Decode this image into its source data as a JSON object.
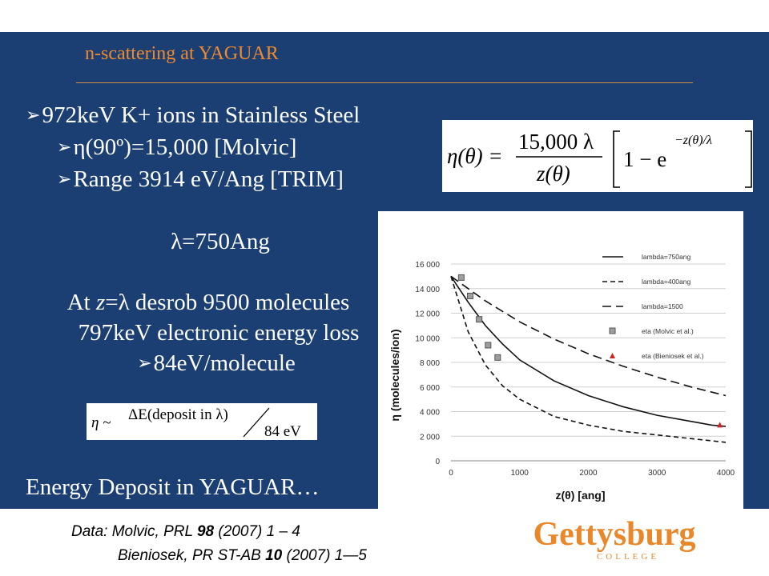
{
  "slide": {
    "title": "n-scattering at YAGUAR",
    "lines": {
      "l1": "972keV K+ ions in Stainless Steel",
      "l2": "η(90º)=15,000  [Molvic]",
      "l3": "Range 3914 eV/Ang [TRIM]",
      "l4": "λ=750Ang",
      "l5a": "At ",
      "l5b": "z",
      "l5c": "=λ desrob 9500 molecules",
      "l6": "797keV electronic energy loss",
      "l7": "84eV/molecule",
      "l8": "Energy Deposit in YAGUAR…"
    },
    "formula1": {
      "lhs": "η(θ) =",
      "num": "15,000 λ",
      "den": "z(θ)",
      "bracket_a": "1 − e",
      "exp": "−z(θ)/λ"
    },
    "formula2": {
      "lhs": "η ~",
      "num": "ΔE(deposit  in  λ)",
      "den": "84 eV"
    }
  },
  "footer": {
    "line1_a": "Data: Molvic, PRL ",
    "line1_b": "98",
    "line1_c": " (2007) 1 – 4",
    "line2_a": "Bieniosek, PR ST-AB ",
    "line2_b": "10",
    "line2_c": " (2007) 1—5"
  },
  "logo": {
    "main": "Gettysburg",
    "sub": "COLLEGE",
    "color": "#e8882a"
  },
  "colors": {
    "slide_bg": "#1b3e73",
    "title": "#f08a2e",
    "marker_red": "#d42020",
    "marker_gray": "#9e9e9e"
  },
  "chart_data": {
    "type": "line",
    "xlabel": "z(θ) [ang]",
    "ylabel": "η (molecules/ion)",
    "xlim": [
      0,
      4000
    ],
    "ylim": [
      0,
      16000
    ],
    "xticks": [
      "0",
      "1000",
      "2000",
      "3000",
      "4000"
    ],
    "yticks": [
      "0",
      "2 000",
      "4 000",
      "6 000",
      "8 000",
      "10 000",
      "12 000",
      "14 000",
      "16 000"
    ],
    "grid": true,
    "legend_position": "top-right",
    "series": [
      {
        "name": "lambda=750ang",
        "style": "solid",
        "x": [
          0,
          250,
          500,
          750,
          1000,
          1500,
          2000,
          2500,
          3000,
          3500,
          3800,
          4000
        ],
        "y": [
          15000,
          12900,
          11000,
          9500,
          8200,
          6500,
          5300,
          4400,
          3700,
          3200,
          2900,
          2800
        ]
      },
      {
        "name": "lambda=400ang",
        "style": "dashed-short",
        "x": [
          0,
          250,
          500,
          750,
          1000,
          1500,
          2000,
          2500,
          3000,
          3500,
          4000
        ],
        "y": [
          15000,
          10500,
          7800,
          6100,
          5000,
          3600,
          2900,
          2400,
          2100,
          1800,
          1500
        ]
      },
      {
        "name": "lambda=1500",
        "style": "dashed-long",
        "x": [
          0,
          500,
          1000,
          1500,
          2000,
          2500,
          3000,
          3500,
          4000
        ],
        "y": [
          15000,
          13000,
          11300,
          9900,
          8700,
          7700,
          6800,
          6000,
          5300
        ]
      },
      {
        "name": "eta (Molvic et al.)",
        "style": "marker-square",
        "x": [
          150,
          280,
          410,
          540,
          680
        ],
        "y": [
          14900,
          13400,
          11500,
          9400,
          8400
        ]
      },
      {
        "name": "eta (Bieniosek et al.)",
        "style": "marker-triangle",
        "x": [
          3914
        ],
        "y": [
          2900
        ]
      }
    ]
  }
}
